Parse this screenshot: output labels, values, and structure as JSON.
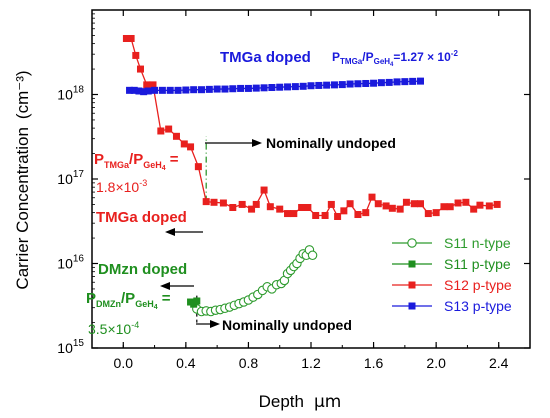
{
  "chart_data": {
    "type": "scatter",
    "xlabel": "Depth",
    "xunit": "μm",
    "ylabel": "Carrier Concentration",
    "yunit": "(cm⁻³)",
    "xlim": [
      -0.2,
      2.6
    ],
    "ylim": [
      1000000000000000.0,
      1e+19
    ],
    "yscale": "log",
    "x_ticks": [
      0.0,
      0.4,
      0.8,
      1.2,
      1.6,
      2.0,
      2.4
    ],
    "x_tick_labels": [
      "0.0",
      "0.4",
      "0.8",
      "1.2",
      "1.6",
      "2.0",
      "2.4"
    ],
    "y_ticks": [
      {
        "value": 1000000000000000.0,
        "base": "10",
        "exp": "15"
      },
      {
        "value": 1e+16,
        "base": "10",
        "exp": "16"
      },
      {
        "value": 1e+17,
        "base": "10",
        "exp": "17"
      },
      {
        "value": 1e+18,
        "base": "10",
        "exp": "18"
      }
    ],
    "legend_position": "right",
    "series": [
      {
        "name": "S11 n-type",
        "color": "#2e9b2e",
        "marker": "open-circle",
        "points": [
          [
            0.47,
            2900000000000000.0
          ],
          [
            0.5,
            2700000000000000.0
          ],
          [
            0.53,
            2750000000000000.0
          ],
          [
            0.56,
            2700000000000000.0
          ],
          [
            0.59,
            2800000000000000.0
          ],
          [
            0.62,
            2850000000000000.0
          ],
          [
            0.65,
            2950000000000000.0
          ],
          [
            0.68,
            3050000000000000.0
          ],
          [
            0.71,
            3200000000000000.0
          ],
          [
            0.74,
            3350000000000000.0
          ],
          [
            0.77,
            3500000000000000.0
          ],
          [
            0.8,
            3700000000000000.0
          ],
          [
            0.83,
            4000000000000000.0
          ],
          [
            0.86,
            4300000000000000.0
          ],
          [
            0.89,
            4800000000000000.0
          ],
          [
            0.92,
            5300000000000000.0
          ],
          [
            0.95,
            5000000000000000.0
          ],
          [
            0.98,
            5600000000000000.0
          ],
          [
            1.01,
            5800000000000000.0
          ],
          [
            1.03,
            6300000000000000.0
          ],
          [
            1.05,
            7600000000000000.0
          ],
          [
            1.07,
            8300000000000000.0
          ],
          [
            1.09,
            9200000000000000.0
          ],
          [
            1.11,
            1e+16
          ],
          [
            1.13,
            1.15e+16
          ],
          [
            1.15,
            1.3e+16
          ],
          [
            1.17,
            1.25e+16
          ],
          [
            1.19,
            1.45e+16
          ],
          [
            1.21,
            1.25e+16
          ]
        ]
      },
      {
        "name": "S11 p-type",
        "color": "#1f8f1f",
        "marker": "filled-square",
        "points": [
          [
            0.43,
            3500000000000000.0
          ],
          [
            0.45,
            3300000000000000.0
          ],
          [
            0.47,
            3600000000000000.0
          ]
        ]
      },
      {
        "name": "S12 p-type",
        "color": "#e8201e",
        "marker": "filled-square",
        "points": [
          [
            0.02,
            4.6e+18
          ],
          [
            0.05,
            4.6e+18
          ],
          [
            0.08,
            2.9e+18
          ],
          [
            0.11,
            2e+18
          ],
          [
            0.15,
            1.3e+18
          ],
          [
            0.19,
            1.3e+18
          ],
          [
            0.24,
            3.7e+17
          ],
          [
            0.29,
            3.9e+17
          ],
          [
            0.34,
            3.2e+17
          ],
          [
            0.39,
            2.6e+17
          ],
          [
            0.43,
            2.4e+17
          ],
          [
            0.48,
            1.4e+17
          ],
          [
            0.53,
            5.4e+16
          ],
          [
            0.58,
            5.3e+16
          ],
          [
            0.64,
            5.2e+16
          ],
          [
            0.7,
            4.6e+16
          ],
          [
            0.76,
            5e+16
          ],
          [
            0.82,
            4.4e+16
          ],
          [
            0.85,
            5e+16
          ],
          [
            0.9,
            7.4e+16
          ],
          [
            0.94,
            4.7e+16
          ],
          [
            1.0,
            4.4e+16
          ],
          [
            1.05,
            3.9e+16
          ],
          [
            1.09,
            3.9e+16
          ],
          [
            1.14,
            4.6e+16
          ],
          [
            1.18,
            4.6e+16
          ],
          [
            1.23,
            3.7e+16
          ],
          [
            1.29,
            3.7e+16
          ],
          [
            1.33,
            5e+16
          ],
          [
            1.37,
            3.6e+16
          ],
          [
            1.41,
            4.2e+16
          ],
          [
            1.45,
            5.1e+16
          ],
          [
            1.5,
            3.8e+16
          ],
          [
            1.55,
            4e+16
          ],
          [
            1.59,
            6.1e+16
          ],
          [
            1.63,
            5.1e+16
          ],
          [
            1.68,
            4.8e+16
          ],
          [
            1.72,
            4.5e+16
          ],
          [
            1.77,
            4.4e+16
          ],
          [
            1.81,
            5.3e+16
          ],
          [
            1.86,
            5.1e+16
          ],
          [
            1.9,
            5.1e+16
          ],
          [
            1.95,
            3.9e+16
          ],
          [
            2.0,
            4e+16
          ],
          [
            2.05,
            4.7e+16
          ],
          [
            2.09,
            4.7e+16
          ],
          [
            2.14,
            5.2e+16
          ],
          [
            2.19,
            5.3e+16
          ],
          [
            2.24,
            4.4e+16
          ],
          [
            2.28,
            4.9e+16
          ],
          [
            2.34,
            4.8e+16
          ],
          [
            2.39,
            5e+16
          ]
        ]
      },
      {
        "name": "S13 p-type",
        "color": "#1a1adc",
        "marker": "filled-square",
        "points": [
          [
            0.04,
            1.12e+18
          ],
          [
            0.07,
            1.12e+18
          ],
          [
            0.1,
            1.1e+18
          ],
          [
            0.13,
            1.08e+18
          ],
          [
            0.16,
            1.1e+18
          ],
          [
            0.2,
            1.12e+18
          ],
          [
            0.25,
            1.12e+18
          ],
          [
            0.3,
            1.12e+18
          ],
          [
            0.35,
            1.12e+18
          ],
          [
            0.4,
            1.13e+18
          ],
          [
            0.45,
            1.14e+18
          ],
          [
            0.5,
            1.14e+18
          ],
          [
            0.55,
            1.15e+18
          ],
          [
            0.6,
            1.16e+18
          ],
          [
            0.65,
            1.16e+18
          ],
          [
            0.7,
            1.17e+18
          ],
          [
            0.75,
            1.18e+18
          ],
          [
            0.8,
            1.18e+18
          ],
          [
            0.85,
            1.19e+18
          ],
          [
            0.9,
            1.2e+18
          ],
          [
            0.95,
            1.21e+18
          ],
          [
            1.0,
            1.22e+18
          ],
          [
            1.05,
            1.23e+18
          ],
          [
            1.1,
            1.24e+18
          ],
          [
            1.15,
            1.25e+18
          ],
          [
            1.2,
            1.27e+18
          ],
          [
            1.25,
            1.28e+18
          ],
          [
            1.3,
            1.29e+18
          ],
          [
            1.35,
            1.3e+18
          ],
          [
            1.4,
            1.31e+18
          ],
          [
            1.45,
            1.33e+18
          ],
          [
            1.5,
            1.34e+18
          ],
          [
            1.55,
            1.35e+18
          ],
          [
            1.6,
            1.36e+18
          ],
          [
            1.65,
            1.38e+18
          ],
          [
            1.7,
            1.39e+18
          ],
          [
            1.75,
            1.41e+18
          ],
          [
            1.8,
            1.42e+18
          ],
          [
            1.85,
            1.43e+18
          ],
          [
            1.9,
            1.44e+18
          ]
        ]
      }
    ],
    "vlines": [
      {
        "x": 0.53,
        "y_from": 5.4e+16,
        "y_to": 3.2e+17,
        "color": "#1f8f1f",
        "style": "dash-dot"
      },
      {
        "x": 0.47,
        "y_from": 2000000000000000.0,
        "y_to": 4200000000000000.0,
        "color": "#000000",
        "style": "dash"
      }
    ],
    "annotations": {
      "tmga_doped_top": {
        "text": "TMGa doped",
        "color": "#1a1adc"
      },
      "ratio_top": {
        "p": "P",
        "sub1": "TMGa",
        "slash": "/P",
        "sub2": "GeH",
        "sub3": "4",
        "value": "=1.27 × 10",
        "exp": "-2",
        "color": "#1a1adc"
      },
      "ratio_s12": {
        "p": "P",
        "sub1": "TMGa",
        "slash": "/P",
        "sub2": "GeH",
        "sub3": "4",
        "eq": " =",
        "color": "#e8201e"
      },
      "ratio_s12_value": {
        "value": "1.8×10",
        "exp": "-3",
        "color": "#e8201e"
      },
      "tmga_doped_red": {
        "text": "TMGa doped",
        "color": "#e8201e"
      },
      "nominally_undoped_1": {
        "text": "Nominally undoped",
        "color": "#000000"
      },
      "nominally_undoped_2": {
        "text": "Nominally undoped",
        "color": "#000000"
      },
      "dmzn_doped": {
        "text": "DMzn doped",
        "color": "#1f8f1f"
      },
      "ratio_dmzn": {
        "p": "P",
        "sub1": "DMZn",
        "slash": "/P",
        "sub2": "GeH",
        "sub3": "4",
        "eq": " =",
        "color": "#1f8f1f"
      },
      "ratio_dmzn_value": {
        "value": "3.5×10",
        "exp": "-4",
        "color": "#1f8f1f"
      }
    }
  }
}
